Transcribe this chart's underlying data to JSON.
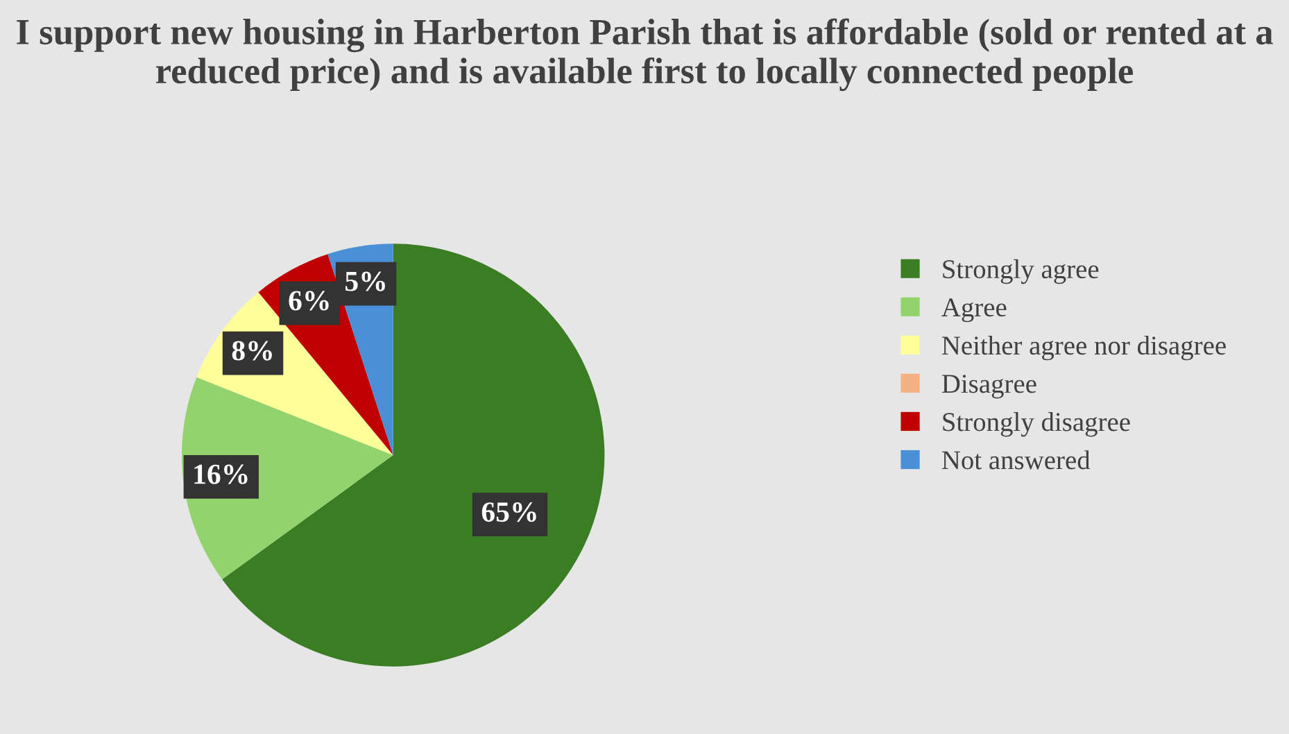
{
  "chart_data": {
    "type": "pie",
    "title": "I support new housing in Harberton Parish that is affordable (sold or rented at a reduced price) and is available first to locally connected people",
    "categories": [
      "Strongly agree",
      "Agree",
      "Neither agree nor disagree",
      "Disagree",
      "Strongly disagree",
      "Not answered"
    ],
    "values": [
      65,
      16,
      8,
      0,
      6,
      5
    ],
    "colors": [
      "#3a7d22",
      "#92d36e",
      "#ffff99",
      "#f4b183",
      "#c00000",
      "#4a90d9"
    ],
    "value_labels": [
      "65%",
      "16%",
      "8%",
      null,
      "6%",
      "5%"
    ],
    "legend": "right"
  }
}
